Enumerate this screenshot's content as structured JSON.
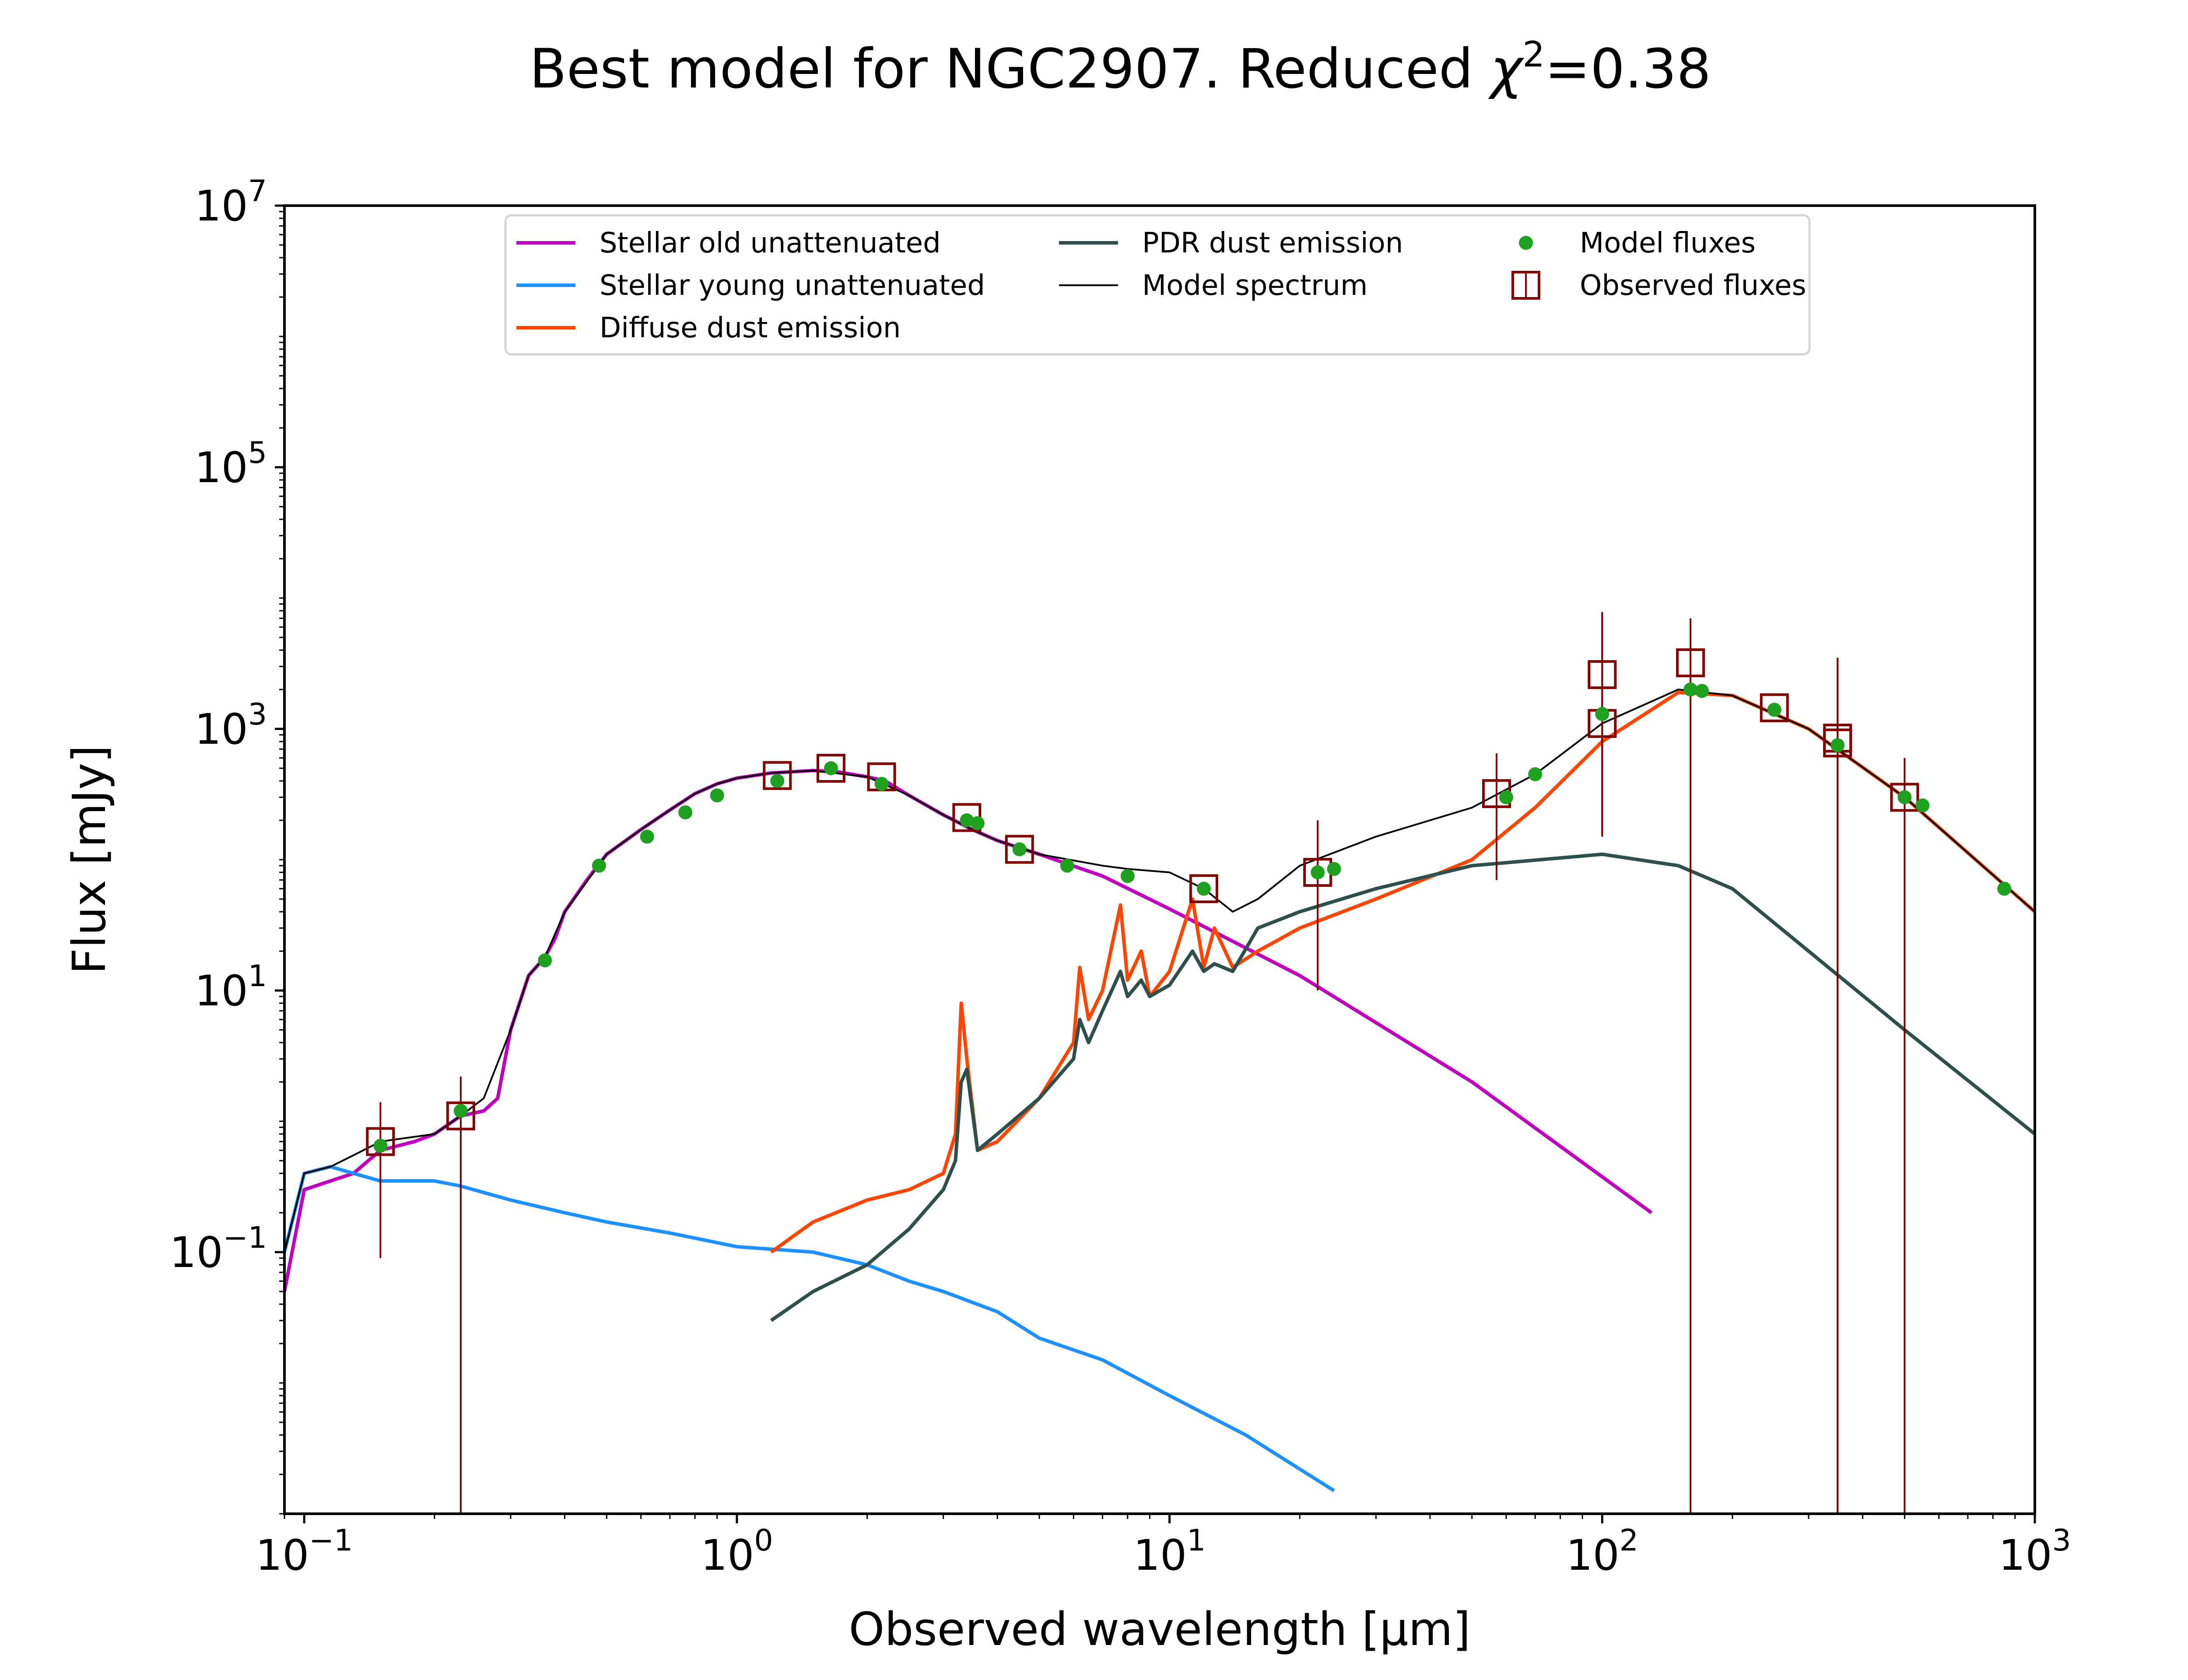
{
  "chart_data": {
    "type": "line",
    "title": "Best model for NGC2907. Reduced χ²=0.38",
    "title_parts": {
      "prefix": "Best model for NGC2907. Reduced ",
      "chi": "χ",
      "sup": "2",
      "suffix": "=0.38"
    },
    "xlabel": "Observed wavelength [μm]",
    "ylabel": "Flux [mJy]",
    "xscale": "log",
    "yscale": "log",
    "xlim": [
      0.09,
      1000
    ],
    "ylim": [
      0.001,
      10000000
    ],
    "x_ticks": [
      {
        "value": 0.1,
        "base": "10",
        "exp": "−1"
      },
      {
        "value": 1,
        "base": "10",
        "exp": "0"
      },
      {
        "value": 10,
        "base": "10",
        "exp": "1"
      },
      {
        "value": 100,
        "base": "10",
        "exp": "2"
      },
      {
        "value": 1000,
        "base": "10",
        "exp": "3"
      }
    ],
    "y_ticks": [
      {
        "value": 0.1,
        "base": "10",
        "exp": "−1"
      },
      {
        "value": 10,
        "base": "10",
        "exp": "1"
      },
      {
        "value": 1000,
        "base": "10",
        "exp": "3"
      },
      {
        "value": 100000,
        "base": "10",
        "exp": "5"
      },
      {
        "value": 10000000,
        "base": "10",
        "exp": "7"
      }
    ],
    "grid": false,
    "legend_position": "top-center",
    "legend": [
      {
        "label": "Stellar old unattenuated",
        "color": "#bf00bf",
        "kind": "line"
      },
      {
        "label": "Stellar young unattenuated",
        "color": "#1e90ff",
        "kind": "line"
      },
      {
        "label": "Diffuse dust emission",
        "color": "#ff4500",
        "kind": "line"
      },
      {
        "label": "PDR dust emission",
        "color": "#2f4f4f",
        "kind": "line"
      },
      {
        "label": "Model spectrum",
        "color": "#000000",
        "kind": "thin-line"
      },
      {
        "label": "Model fluxes",
        "color": "#20a020",
        "kind": "dot"
      },
      {
        "label": "Observed fluxes",
        "color": "#800000",
        "kind": "square"
      }
    ],
    "series": [
      {
        "name": "Stellar old unattenuated",
        "color": "#bf00bf",
        "x": [
          0.09,
          0.1,
          0.115,
          0.13,
          0.15,
          0.18,
          0.2,
          0.23,
          0.26,
          0.28,
          0.3,
          0.33,
          0.36,
          0.38,
          0.4,
          0.45,
          0.5,
          0.6,
          0.7,
          0.8,
          0.9,
          1.0,
          1.2,
          1.5,
          1.7,
          2.0,
          2.2,
          2.5,
          3.0,
          3.5,
          4.0,
          5.0,
          7.0,
          10.0,
          20.0,
          50.0,
          130.0
        ],
        "y": [
          0.05,
          0.3,
          0.35,
          0.4,
          0.6,
          0.7,
          0.8,
          1.1,
          1.2,
          1.5,
          5,
          13,
          18,
          25,
          40,
          70,
          110,
          170,
          240,
          320,
          380,
          420,
          460,
          480,
          470,
          430,
          400,
          310,
          220,
          170,
          140,
          110,
          75,
          42,
          13,
          2,
          0.2
        ]
      },
      {
        "name": "Stellar young unattenuated",
        "color": "#1e90ff",
        "x": [
          0.09,
          0.1,
          0.115,
          0.13,
          0.15,
          0.2,
          0.23,
          0.3,
          0.4,
          0.5,
          0.7,
          1.0,
          1.5,
          2.0,
          2.5,
          3.0,
          4.0,
          5.0,
          7.0,
          10.0,
          15.0,
          24.0
        ],
        "y": [
          0.1,
          0.4,
          0.45,
          0.4,
          0.35,
          0.35,
          0.32,
          0.25,
          0.2,
          0.17,
          0.14,
          0.11,
          0.1,
          0.08,
          0.06,
          0.05,
          0.035,
          0.022,
          0.015,
          0.008,
          0.004,
          0.0015
        ]
      },
      {
        "name": "Diffuse dust emission",
        "color": "#ff4500",
        "x": [
          1.2,
          1.5,
          2.0,
          2.5,
          3.0,
          3.2,
          3.3,
          3.4,
          3.6,
          4.0,
          5.0,
          6.0,
          6.2,
          6.5,
          7.0,
          7.7,
          8.0,
          8.6,
          9.0,
          10.0,
          11.3,
          12.0,
          12.7,
          14.0,
          16.0,
          20.0,
          30.0,
          50.0,
          70.0,
          100.0,
          150.0,
          200.0,
          300.0,
          500.0,
          1000.0
        ],
        "y": [
          0.1,
          0.17,
          0.25,
          0.3,
          0.4,
          0.8,
          8,
          3,
          0.6,
          0.7,
          1.5,
          4,
          15,
          6,
          10,
          45,
          12,
          20,
          9,
          14,
          50,
          15,
          30,
          15,
          20,
          30,
          50,
          100,
          250,
          800,
          1900,
          1800,
          1000,
          300,
          40
        ]
      },
      {
        "name": "PDR dust emission",
        "color": "#2f4f4f",
        "x": [
          1.2,
          1.5,
          2.0,
          2.5,
          3.0,
          3.2,
          3.3,
          3.4,
          3.6,
          4.0,
          5.0,
          6.0,
          6.2,
          6.5,
          7.0,
          7.7,
          8.0,
          8.6,
          9.0,
          10.0,
          11.3,
          12.0,
          12.7,
          14.0,
          16.0,
          20.0,
          30.0,
          50.0,
          100.0,
          150.0,
          200.0,
          300.0,
          500.0,
          1000.0
        ],
        "y": [
          0.03,
          0.05,
          0.08,
          0.15,
          0.3,
          0.5,
          2,
          2.5,
          0.6,
          0.8,
          1.5,
          3,
          6,
          4,
          7,
          14,
          9,
          12,
          9,
          11,
          20,
          14,
          16,
          14,
          30,
          40,
          60,
          90,
          110,
          90,
          60,
          20,
          5,
          0.8
        ]
      },
      {
        "name": "Model spectrum",
        "color": "#000000",
        "x": [
          0.09,
          0.1,
          0.115,
          0.13,
          0.15,
          0.2,
          0.23,
          0.26,
          0.3,
          0.33,
          0.36,
          0.4,
          0.5,
          0.6,
          0.7,
          0.8,
          0.9,
          1.0,
          1.2,
          1.5,
          2.0,
          2.5,
          3.0,
          3.5,
          4.0,
          5.0,
          7.0,
          8.0,
          10.0,
          12.0,
          14.0,
          16.0,
          20.0,
          30.0,
          40.0,
          50.0,
          70.0,
          100.0,
          150.0,
          200.0,
          300.0,
          500.0,
          1000.0
        ],
        "y": [
          0.1,
          0.4,
          0.45,
          0.55,
          0.7,
          0.8,
          1.1,
          1.5,
          5,
          13,
          18,
          40,
          110,
          170,
          240,
          320,
          380,
          420,
          460,
          480,
          430,
          310,
          220,
          170,
          140,
          110,
          90,
          85,
          80,
          60,
          40,
          50,
          90,
          150,
          200,
          250,
          450,
          1100,
          2000,
          1800,
          1000,
          300,
          40
        ]
      }
    ],
    "model_fluxes": {
      "color": "#20a020",
      "x": [
        0.15,
        0.23,
        0.36,
        0.48,
        0.62,
        0.76,
        0.9,
        1.24,
        1.65,
        2.16,
        3.4,
        3.6,
        4.5,
        5.8,
        8.0,
        12.0,
        22.0,
        24.0,
        60.0,
        70.0,
        100.0,
        160.0,
        170.0,
        250.0,
        350.0,
        500.0,
        550.0,
        850.0
      ],
      "y": [
        0.65,
        1.2,
        17,
        90,
        150,
        230,
        310,
        400,
        500,
        380,
        200,
        190,
        120,
        90,
        75,
        60,
        80,
        85,
        300,
        450,
        1300,
        2000,
        1950,
        1400,
        750,
        300,
        260,
        60
      ]
    },
    "observed_fluxes": {
      "color": "#800000",
      "x": [
        0.15,
        0.23,
        1.24,
        1.65,
        2.16,
        3.4,
        4.5,
        12.0,
        22.0,
        57.0,
        100.0,
        100.0,
        160.0,
        250.0,
        350.0,
        350.0,
        500.0
      ],
      "y": [
        0.7,
        1.1,
        440,
        500,
        430,
        210,
        120,
        60,
        80,
        320,
        2600,
        1100,
        3200,
        1450,
        850,
        780,
        300
      ],
      "err_low": [
        0.09,
        0.001,
        440,
        500,
        430,
        210,
        120,
        60,
        10,
        70,
        150,
        150,
        0.001,
        1450,
        0.001,
        0.001,
        0.001
      ],
      "err_high": [
        1.4,
        2.2,
        440,
        500,
        430,
        210,
        120,
        60,
        200,
        650,
        7800,
        7800,
        7000,
        1450,
        3500,
        3500,
        600
      ]
    }
  }
}
